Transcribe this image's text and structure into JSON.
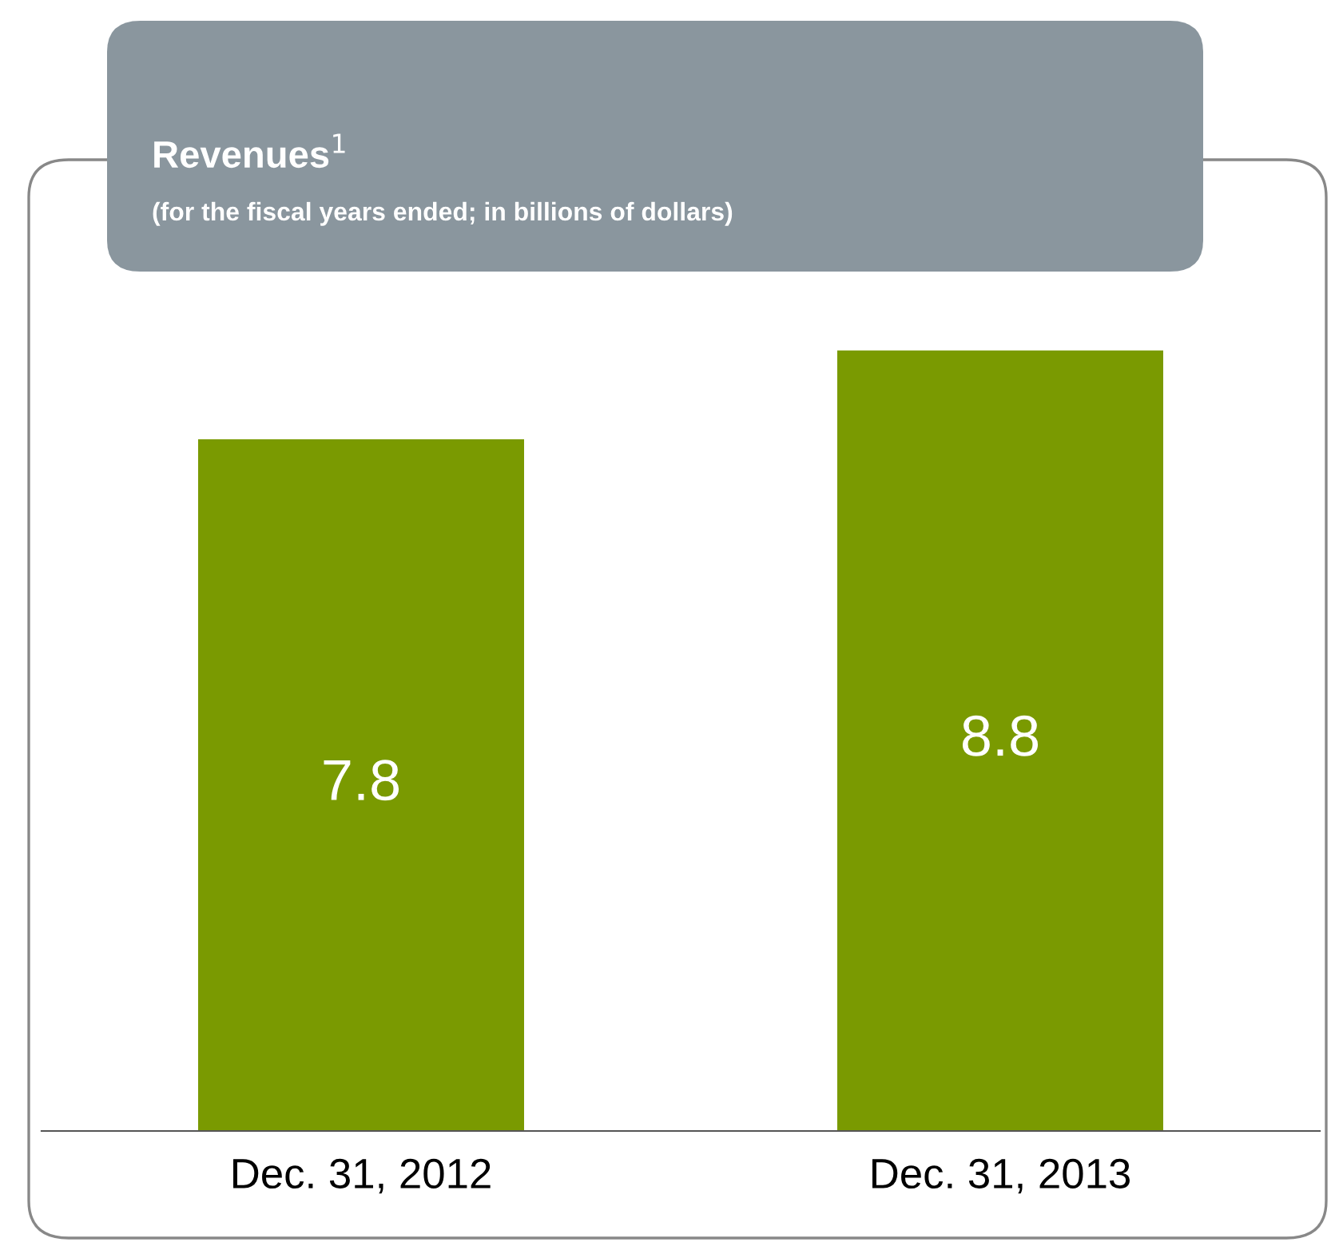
{
  "chart_data": {
    "type": "bar",
    "title": "Revenues$^{1}$",
    "subtitle": "(for the fiscal years ended; in billions of dollars)",
    "categories": [
      "Dec. 31, 2012",
      "Dec. 31, 2013"
    ],
    "values": [
      7.8,
      8.8
    ],
    "color": "#7a9a01",
    "data_labels": true,
    "grid": false,
    "legend": false,
    "tick_labels": "x"
  }
}
